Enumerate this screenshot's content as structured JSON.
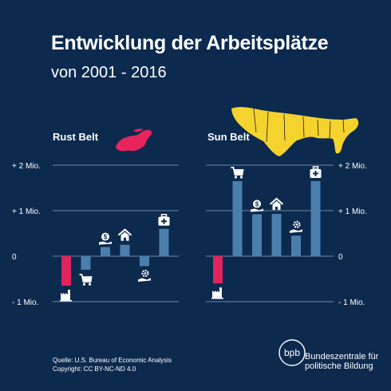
{
  "header": {
    "title": "Entwicklung der Arbeitsplätze",
    "subtitle": "von 2001 - 2016"
  },
  "footer": {
    "source": "Quelle: U.S. Bureau of Economic Analysis",
    "license": "Copyright: CC BY-NC-ND 4.0",
    "logo_text": "bpb",
    "org_line1": "Bundeszentrale für",
    "org_line2": "politische Bildung"
  },
  "colors": {
    "background": "#0c2a4e",
    "bar": "#4a7fac",
    "negative_bar": "#e0245e",
    "rust_map": "#e8245c",
    "sun_map": "#f5d32e",
    "gridline": "#8fa6bf"
  },
  "chart_data": [
    {
      "type": "bar",
      "panel": "Rust Belt",
      "title": "Rust Belt",
      "categories": [
        "factory-icon",
        "cart-icon",
        "money-hand-icon",
        "house-icon",
        "gear-hand-icon",
        "medical-case-icon"
      ],
      "values": [
        -0.65,
        -0.3,
        0.2,
        0.25,
        -0.22,
        0.6
      ],
      "unit": "Mio.",
      "ylim": [
        -1,
        2
      ],
      "yticks": [
        {
          "value": 2,
          "label": "+ 2 Mio."
        },
        {
          "value": 1,
          "label": "+ 1 Mio."
        },
        {
          "value": 0,
          "label": "0"
        },
        {
          "value": -1,
          "label": "- 1 Mio."
        }
      ],
      "grid": true
    },
    {
      "type": "bar",
      "panel": "Sun Belt",
      "title": "Sun Belt",
      "categories": [
        "factory-icon",
        "cart-icon",
        "money-hand-icon",
        "house-icon",
        "gear-hand-icon",
        "medical-case-icon"
      ],
      "values": [
        -0.6,
        1.65,
        0.92,
        0.93,
        0.45,
        1.65
      ],
      "unit": "Mio.",
      "ylim": [
        -1,
        2
      ],
      "yticks": [
        {
          "value": 2,
          "label": "+ 2 Mio."
        },
        {
          "value": 1,
          "label": "+ 1 Mio."
        },
        {
          "value": 0,
          "label": "0"
        },
        {
          "value": -1,
          "label": "- 1 Mio."
        }
      ],
      "grid": true
    }
  ]
}
